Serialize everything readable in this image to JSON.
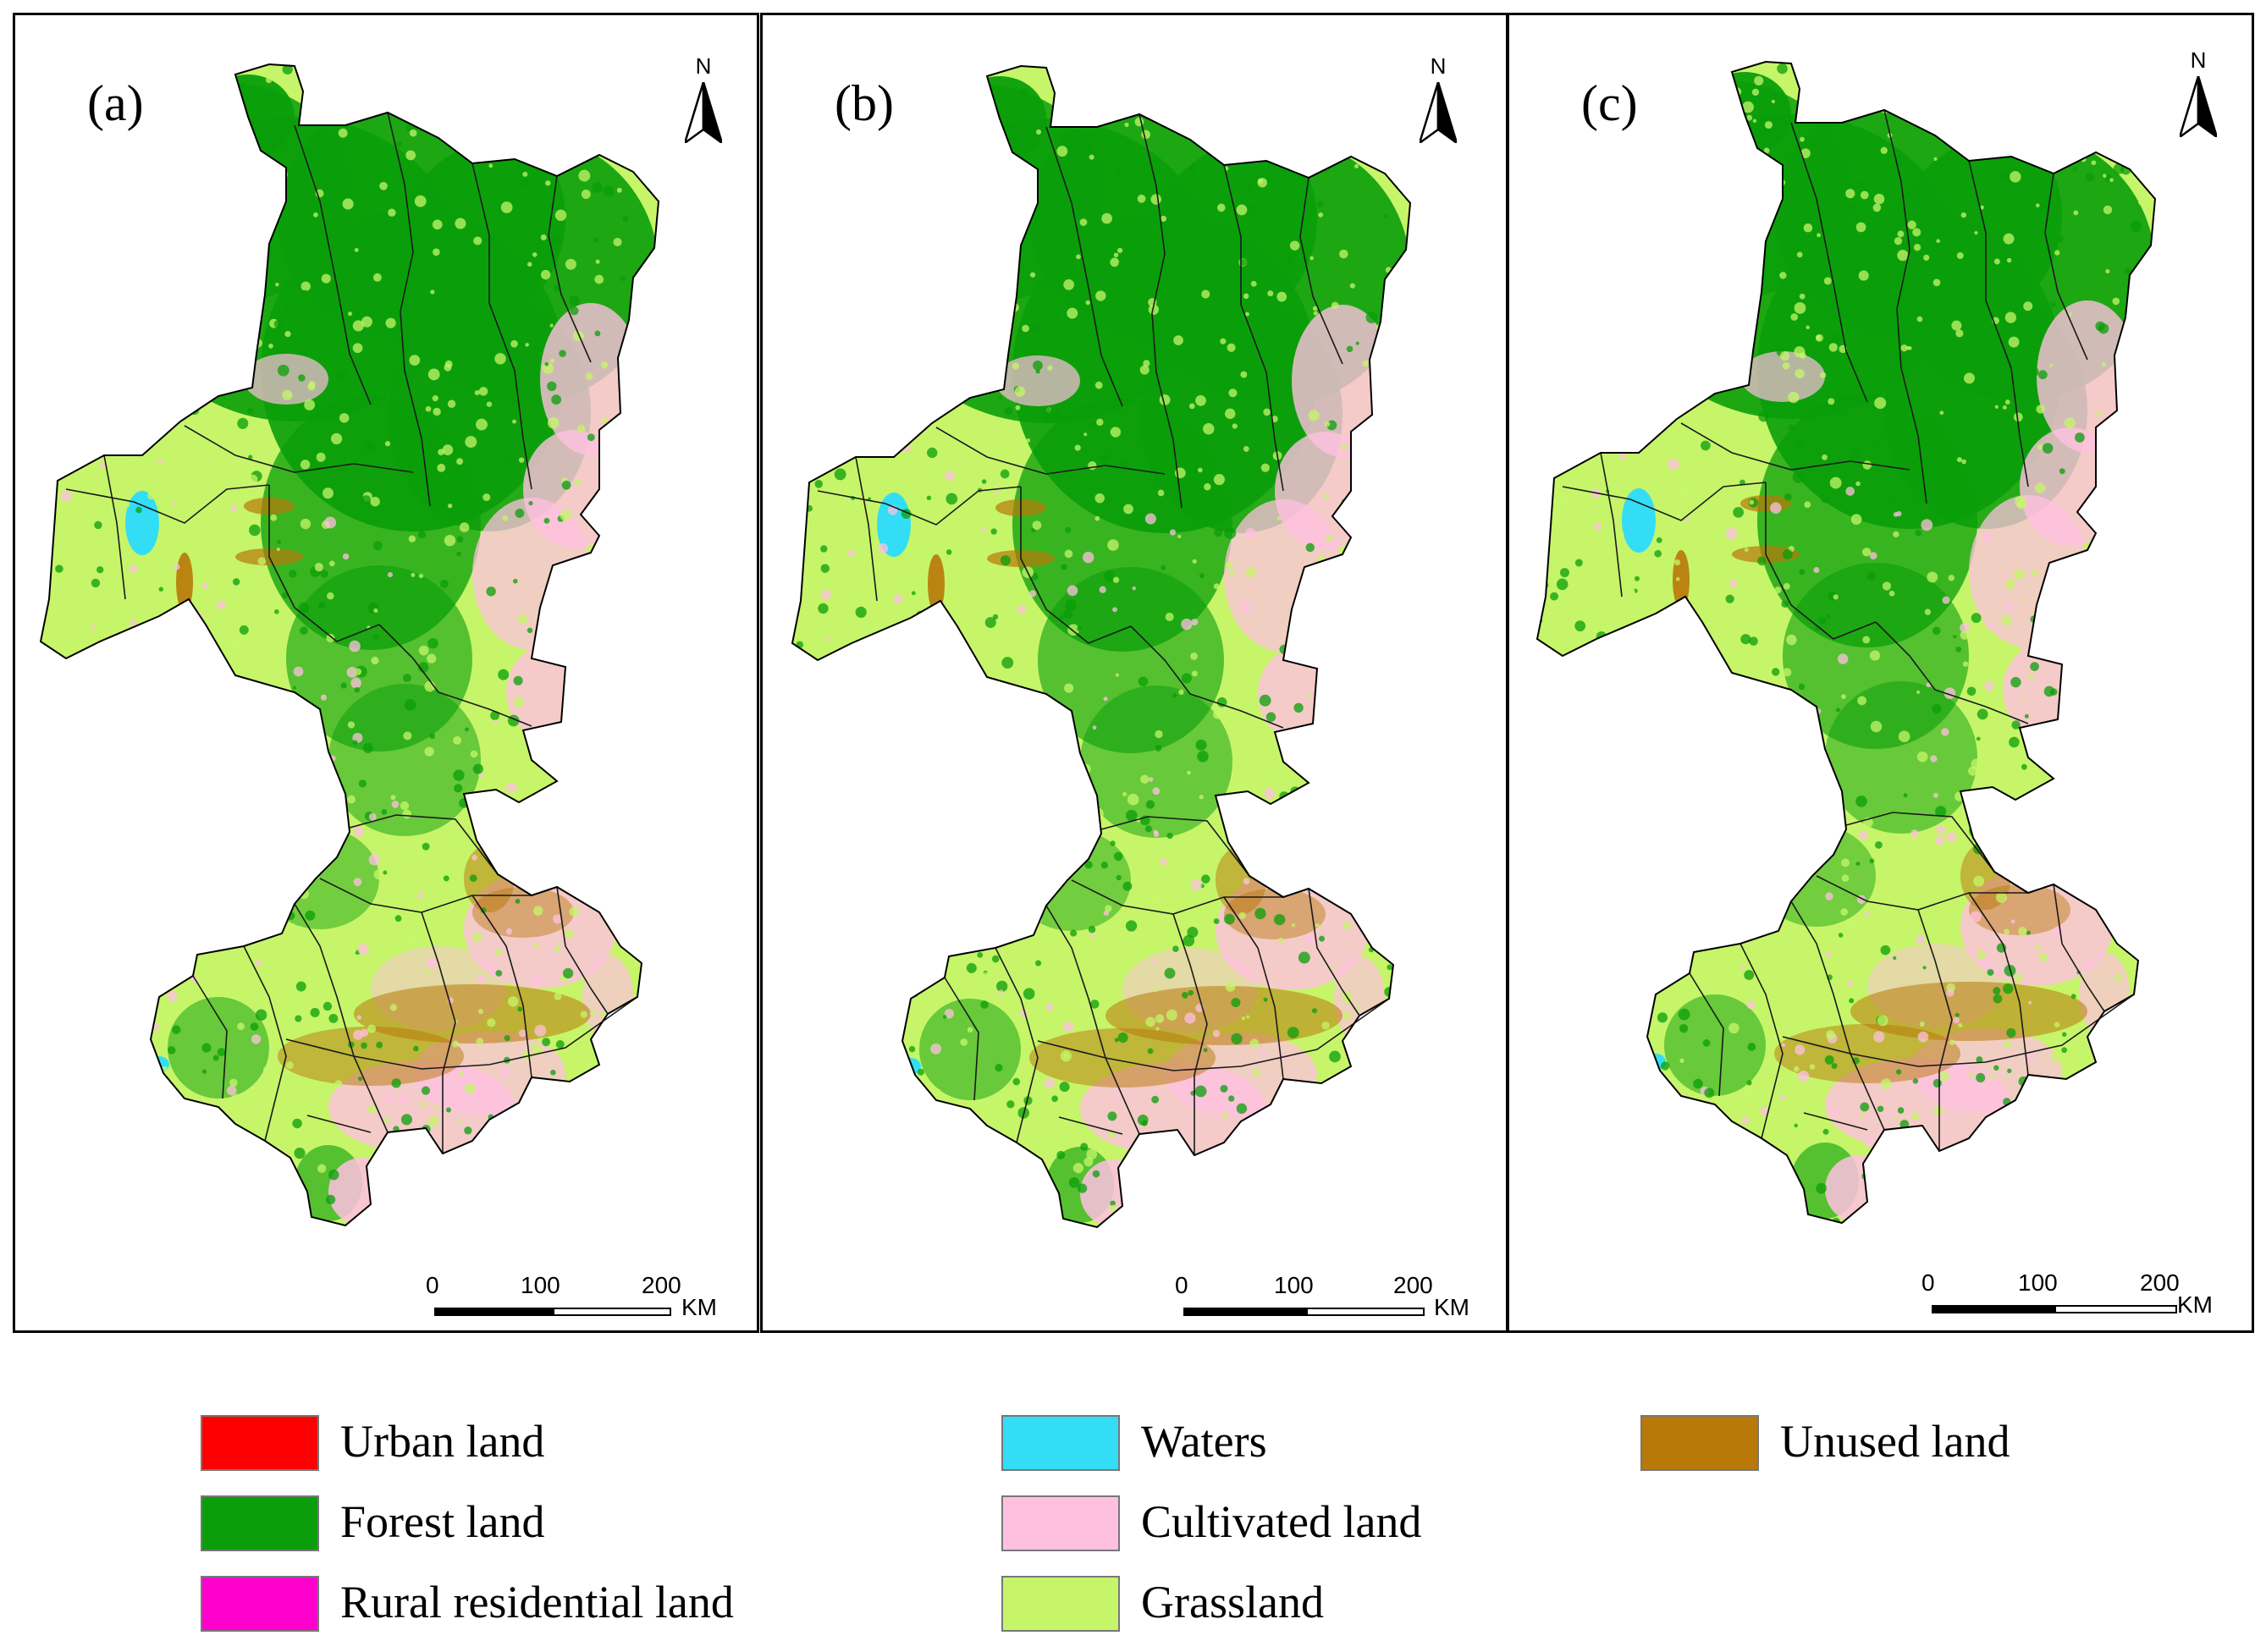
{
  "panels": [
    {
      "label": "(a)"
    },
    {
      "label": "(b)"
    },
    {
      "label": "(c)"
    }
  ],
  "north_arrow": {
    "letter": "N"
  },
  "scale_bar": {
    "ticks": [
      "0",
      "100",
      "200"
    ],
    "unit": "KM"
  },
  "legend": {
    "items": [
      {
        "label": "Urban land",
        "color": "#ff0000"
      },
      {
        "label": "Forest land",
        "color": "#0a9e0a"
      },
      {
        "label": "Rural residential land",
        "color": "#ff00cc"
      },
      {
        "label": "Waters",
        "color": "#33ddf5"
      },
      {
        "label": "Cultivated land",
        "color": "#ffc0e0"
      },
      {
        "label": "Grassland",
        "color": "#c6f56a"
      },
      {
        "label": "Unused land",
        "color": "#b8780a"
      }
    ]
  }
}
